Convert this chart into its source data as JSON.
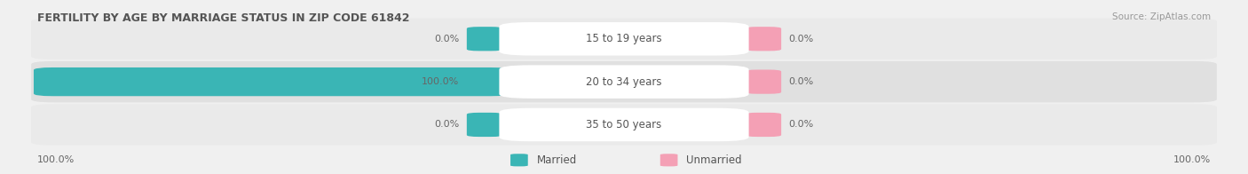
{
  "title": "FERTILITY BY AGE BY MARRIAGE STATUS IN ZIP CODE 61842",
  "source": "Source: ZipAtlas.com",
  "rows": [
    {
      "label": "15 to 19 years",
      "married": 0.0,
      "unmarried": 0.0
    },
    {
      "label": "20 to 34 years",
      "married": 100.0,
      "unmarried": 0.0
    },
    {
      "label": "35 to 50 years",
      "married": 0.0,
      "unmarried": 0.0
    }
  ],
  "married_color": "#3ab5b5",
  "unmarried_color": "#f4a0b5",
  "bg_color": "#f0f0f0",
  "row_bg_odd": "#eaeaea",
  "row_bg_even": "#e0e0e0",
  "label_box_color": "#ffffff",
  "title_color": "#555555",
  "source_color": "#999999",
  "value_color": "#666666",
  "label_color": "#555555",
  "legend_marker_married": "#3ab5b5",
  "legend_marker_unmarried": "#f4a0b5",
  "legend_married": "Married",
  "legend_unmarried": "Unmarried",
  "left_axis_label": "100.0%",
  "right_axis_label": "100.0%"
}
